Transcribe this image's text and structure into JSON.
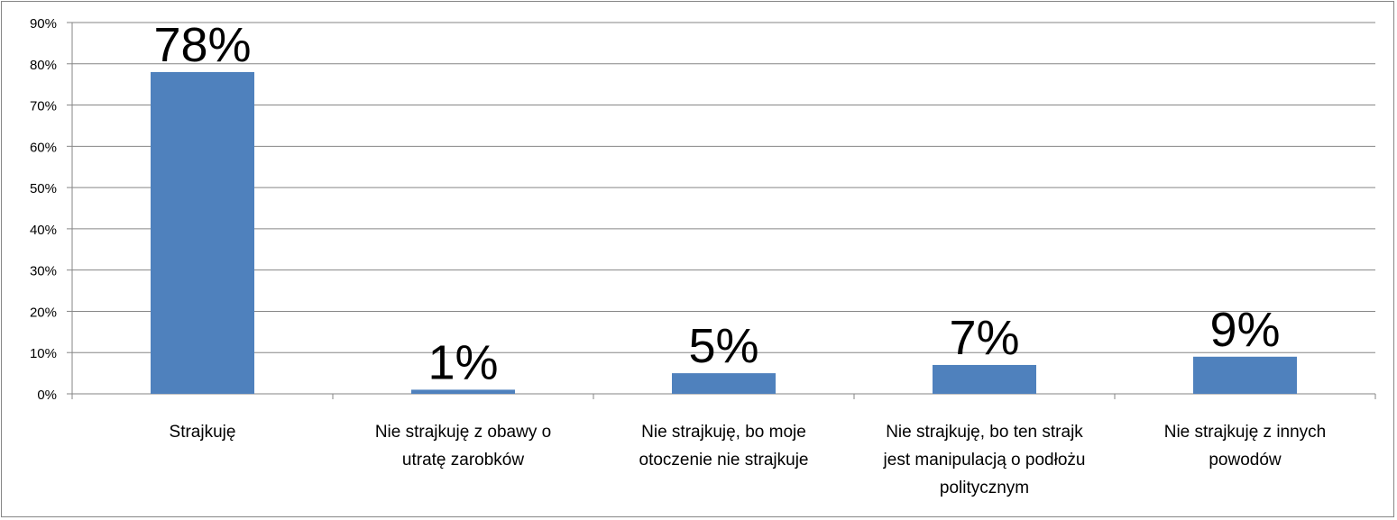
{
  "chart_data": {
    "type": "bar",
    "categories": [
      [
        "Strajkuję"
      ],
      [
        "Nie strajkuję z obawy o",
        "utratę zarobków"
      ],
      [
        "Nie strajkuję, bo moje",
        "otoczenie nie strajkuje"
      ],
      [
        "Nie strajkuję, bo ten strajk",
        "jest manipulacją o podłożu",
        "politycznym"
      ],
      [
        "Nie strajkuję z innych",
        "powodów"
      ]
    ],
    "values": [
      78,
      1,
      5,
      7,
      9
    ],
    "data_labels": [
      "78%",
      "1%",
      "5%",
      "7%",
      "9%"
    ],
    "ylim": [
      0,
      90
    ],
    "yticks": [
      0,
      10,
      20,
      30,
      40,
      50,
      60,
      70,
      80,
      90
    ],
    "ytick_labels": [
      "0%",
      "10%",
      "20%",
      "30%",
      "40%",
      "50%",
      "60%",
      "70%",
      "80%",
      "90%"
    ],
    "grid": true,
    "legend": "none",
    "colors": {
      "bar": "#4F81BD",
      "grid": "#868686",
      "axis": "#868686"
    }
  }
}
